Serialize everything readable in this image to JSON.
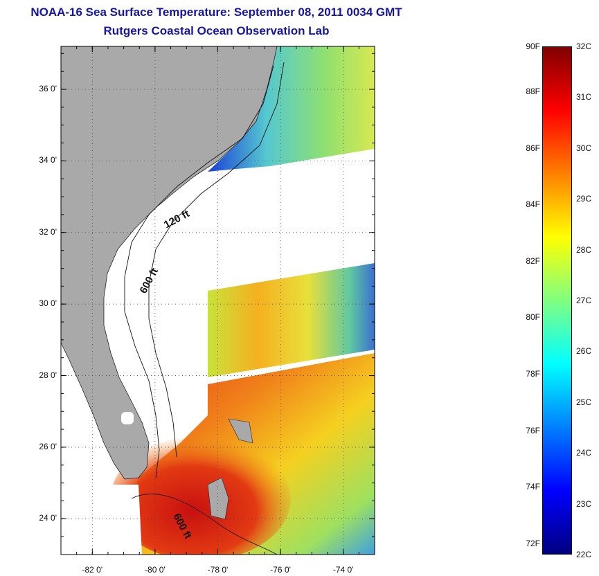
{
  "title": {
    "line1": "NOAA-16 Sea Surface Temperature:  September 08, 2011 0034 GMT",
    "line2": "Rutgers Coastal Ocean Observation Lab"
  },
  "map": {
    "lat_ticks": [
      {
        "label": "36 0'",
        "value": 36
      },
      {
        "label": "34 0'",
        "value": 34
      },
      {
        "label": "32 0'",
        "value": 32
      },
      {
        "label": "30 0'",
        "value": 30
      },
      {
        "label": "28 0'",
        "value": 28
      },
      {
        "label": "26 0'",
        "value": 26
      },
      {
        "label": "24 0'",
        "value": 24
      }
    ],
    "lon_ticks": [
      {
        "label": "-82 0'",
        "value": -82
      },
      {
        "label": "-80 0'",
        "value": -80
      },
      {
        "label": "-78 0'",
        "value": -78
      },
      {
        "label": "-76 0'",
        "value": -76
      },
      {
        "label": "-74 0'",
        "value": -74
      }
    ],
    "lat_range": [
      23.0,
      37.2
    ],
    "lon_range": [
      -83.0,
      -73.0
    ],
    "contour_labels": [
      "120 ft",
      "600 ft",
      "600 ft"
    ],
    "land_color": "#a9a9a9",
    "no_data_color": "#ffffff"
  },
  "colorbar": {
    "fahrenheit_labels": [
      "90F",
      "88F",
      "86F",
      "84F",
      "82F",
      "80F",
      "78F",
      "76F",
      "74F",
      "72F"
    ],
    "celsius_labels": [
      "32C",
      "31C",
      "30C",
      "29C",
      "28C",
      "27C",
      "26C",
      "25C",
      "24C",
      "23C",
      "22C"
    ],
    "range_c": [
      22,
      32
    ],
    "colors": [
      "#000080",
      "#0000ff",
      "#0080ff",
      "#00ffff",
      "#80ff80",
      "#ffff00",
      "#ff8000",
      "#ff0000",
      "#800000"
    ]
  }
}
